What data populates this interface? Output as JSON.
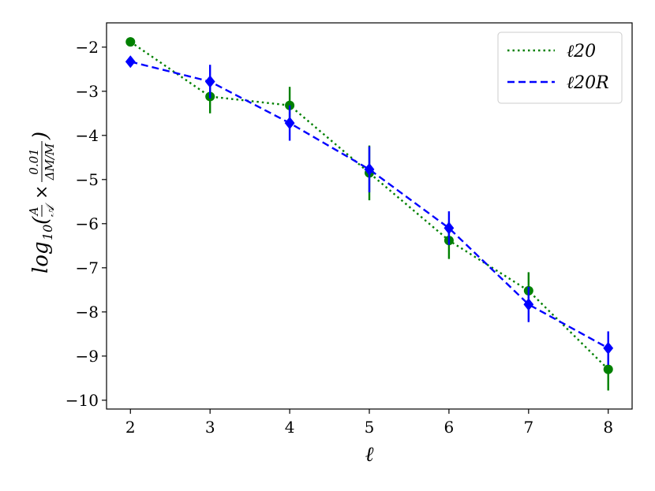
{
  "chart_data": {
    "type": "line",
    "title": "",
    "xlabel": "ℓ",
    "ylabel": "log10(A/𝒜 × 0.01/(ΔM/M))",
    "ylabel_parts": {
      "base": "log",
      "sub": "10",
      "open": "(",
      "frac1_num": "A",
      "frac1_den": "𝒜",
      "times": "×",
      "frac2_num": "0.01",
      "frac2_den": "ΔM/M",
      "close": ")"
    },
    "x": [
      2,
      3,
      4,
      5,
      6,
      7,
      8
    ],
    "xlim": [
      1.7,
      8.3
    ],
    "ylim": [
      -10.2,
      -1.45
    ],
    "xticks": [
      2,
      3,
      4,
      5,
      6,
      7,
      8
    ],
    "yticks": [
      -2,
      -3,
      -4,
      -5,
      -6,
      -7,
      -8,
      -9,
      -10
    ],
    "xtick_labels": [
      "2",
      "3",
      "4",
      "5",
      "6",
      "7",
      "8"
    ],
    "ytick_labels": [
      "−2",
      "−3",
      "−4",
      "−5",
      "−6",
      "−7",
      "−8",
      "−9",
      "−10"
    ],
    "grid": false,
    "legend_position": "top-right",
    "series": [
      {
        "name": "ℓ20",
        "color": "#008000",
        "linestyle": "dotted",
        "marker": "circle",
        "values": [
          -1.88,
          -3.12,
          -3.32,
          -4.85,
          -6.38,
          -7.52,
          -9.3
        ],
        "errors": [
          0.1,
          0.38,
          0.42,
          0.62,
          0.42,
          0.42,
          0.48
        ]
      },
      {
        "name": "ℓ20R",
        "color": "#0000ff",
        "linestyle": "dashed",
        "marker": "diamond",
        "values": [
          -2.33,
          -2.78,
          -3.72,
          -4.77,
          -6.1,
          -7.83,
          -8.82
        ],
        "errors": [
          0.0,
          0.38,
          0.4,
          0.52,
          0.38,
          0.4,
          0.38
        ]
      }
    ]
  }
}
